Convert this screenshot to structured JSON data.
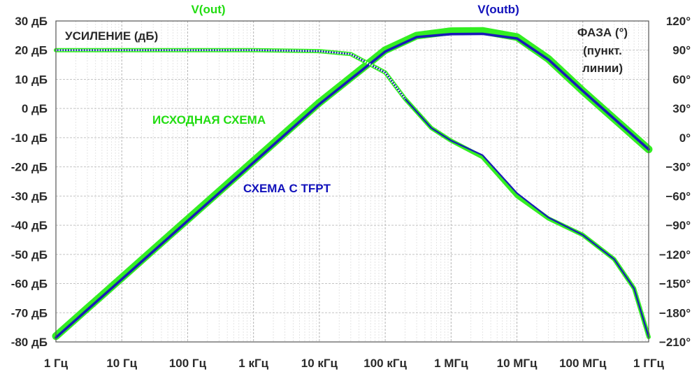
{
  "chart_data": {
    "type": "line",
    "x_scale": "log",
    "xlim_hz": [
      1,
      1000000000
    ],
    "ylim_gain_db": [
      -80,
      30
    ],
    "ylim_phase_deg": [
      -210,
      120
    ],
    "grid": true,
    "x_ticks": [
      {
        "value": 1,
        "label": "1 Гц"
      },
      {
        "value": 10,
        "label": "10 Гц"
      },
      {
        "value": 100,
        "label": "100 Гц"
      },
      {
        "value": 1000,
        "label": "1 кГц"
      },
      {
        "value": 10000,
        "label": "10 кГц"
      },
      {
        "value": 100000,
        "label": "100 кГц"
      },
      {
        "value": 1000000,
        "label": "1 МГц"
      },
      {
        "value": 10000000,
        "label": "10 МГц"
      },
      {
        "value": 100000000,
        "label": "100 МГц"
      },
      {
        "value": 1000000000,
        "label": "1 ГГц"
      }
    ],
    "y_left_ticks": [
      {
        "value": 30,
        "label": "30 дБ"
      },
      {
        "value": 20,
        "label": "20 дБ"
      },
      {
        "value": 10,
        "label": "10 дБ"
      },
      {
        "value": 0,
        "label": "0 дБ"
      },
      {
        "value": -10,
        "label": "-10 дБ"
      },
      {
        "value": -20,
        "label": "-20 дБ"
      },
      {
        "value": -30,
        "label": "-30 дБ"
      },
      {
        "value": -40,
        "label": "-40 дБ"
      },
      {
        "value": -50,
        "label": "-50 дБ"
      },
      {
        "value": -60,
        "label": "-60 дБ"
      },
      {
        "value": -70,
        "label": "-70 дБ"
      },
      {
        "value": -80,
        "label": "-80 дБ"
      }
    ],
    "y_right_ticks": [
      {
        "value": 120,
        "label": "120°"
      },
      {
        "value": 90,
        "label": "90°"
      },
      {
        "value": 60,
        "label": "60°"
      },
      {
        "value": 30,
        "label": "30°"
      },
      {
        "value": 0,
        "label": "0°"
      },
      {
        "value": -30,
        "label": "−30°"
      },
      {
        "value": -60,
        "label": "−60°"
      },
      {
        "value": -90,
        "label": "−90°"
      },
      {
        "value": -120,
        "label": "−120°"
      },
      {
        "value": -150,
        "label": "−150°"
      },
      {
        "value": -180,
        "label": "−180°"
      },
      {
        "value": -210,
        "label": "−210°"
      }
    ],
    "top_labels": [
      {
        "text": "V(out)",
        "color": "#22dd11"
      },
      {
        "text": "V(outb)",
        "color": "#1111bb"
      }
    ],
    "ylabel_left": "УСИЛЕНИЕ (дБ)",
    "ylabel_right": [
      "ФАЗА (°)",
      "(пункт.",
      "линии)"
    ],
    "annotations": [
      {
        "text": "ИСХОДНАЯ СХЕМА",
        "color": "#22dd11"
      },
      {
        "text": "СХЕМА С TFPT",
        "color": "#1111bb"
      }
    ],
    "series": [
      {
        "name": "V(out)",
        "kind": "gain",
        "axis": "left",
        "style": "solid",
        "color": "#33ee22",
        "points": [
          [
            1,
            -78
          ],
          [
            10,
            -58
          ],
          [
            100,
            -38
          ],
          [
            1000,
            -18
          ],
          [
            10000,
            2
          ],
          [
            100000,
            20
          ],
          [
            300000,
            25
          ],
          [
            1000000,
            26.5
          ],
          [
            3000000,
            26.6
          ],
          [
            10000000,
            24.5
          ],
          [
            30000000,
            17
          ],
          [
            100000000,
            6
          ],
          [
            1000000000,
            -14
          ]
        ]
      },
      {
        "name": "V(outb)",
        "kind": "gain",
        "axis": "left",
        "style": "solid",
        "color": "#1a1ab8",
        "points": [
          [
            1,
            -78.5
          ],
          [
            10,
            -58.5
          ],
          [
            100,
            -38.5
          ],
          [
            1000,
            -18.5
          ],
          [
            10000,
            1.5
          ],
          [
            100000,
            19.5
          ],
          [
            300000,
            24.5
          ],
          [
            1000000,
            25.5
          ],
          [
            3000000,
            25.6
          ],
          [
            10000000,
            24
          ],
          [
            30000000,
            16.8
          ],
          [
            100000000,
            6
          ],
          [
            1000000000,
            -14
          ]
        ]
      },
      {
        "name": "V(out)",
        "kind": "phase",
        "axis": "right",
        "style": "dotted",
        "color": "#33ee22",
        "points": [
          [
            1,
            90
          ],
          [
            1000,
            90
          ],
          [
            10000,
            89
          ],
          [
            30000,
            86
          ],
          [
            100000,
            67
          ],
          [
            200000,
            40
          ],
          [
            500000,
            10
          ],
          [
            1000000,
            -3
          ],
          [
            3000000,
            -20
          ],
          [
            10000000,
            -60
          ],
          [
            30000000,
            -83
          ],
          [
            100000000,
            -100
          ],
          [
            300000000,
            -125
          ],
          [
            600000000,
            -155
          ],
          [
            1000000000,
            -205
          ]
        ]
      },
      {
        "name": "V(outb)",
        "kind": "phase",
        "axis": "right",
        "style": "dotted",
        "color": "#1a1ab8",
        "points": [
          [
            1,
            90
          ],
          [
            1000,
            90
          ],
          [
            10000,
            89
          ],
          [
            30000,
            86
          ],
          [
            100000,
            67
          ],
          [
            200000,
            40
          ],
          [
            500000,
            10
          ],
          [
            1000000,
            -3
          ],
          [
            3000000,
            -18
          ],
          [
            10000000,
            -57
          ],
          [
            30000000,
            -82
          ],
          [
            100000000,
            -100
          ],
          [
            300000000,
            -125
          ],
          [
            600000000,
            -155
          ],
          [
            1000000000,
            -205
          ]
        ]
      }
    ]
  }
}
